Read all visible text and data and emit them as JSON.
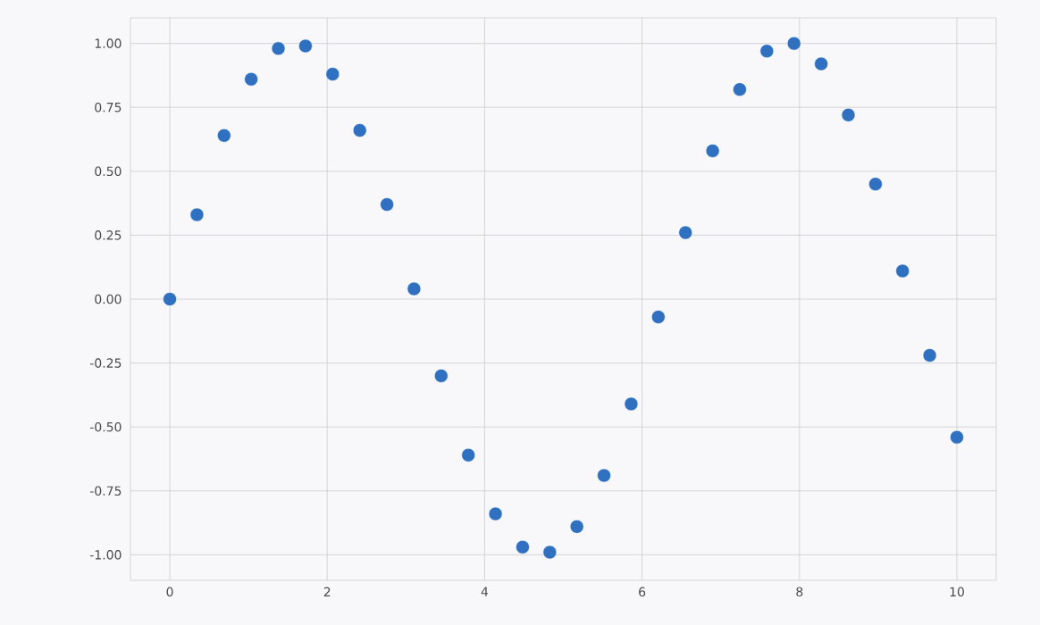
{
  "chart_data": {
    "type": "scatter",
    "x": [
      0,
      0.345,
      0.69,
      1.034,
      1.379,
      1.724,
      2.069,
      2.414,
      2.759,
      3.103,
      3.448,
      3.793,
      4.138,
      4.483,
      4.828,
      5.172,
      5.517,
      5.862,
      6.207,
      6.552,
      6.897,
      7.241,
      7.586,
      7.931,
      8.276,
      8.621,
      8.966,
      9.31,
      9.655,
      10
    ],
    "values": [
      0,
      0.33,
      0.64,
      0.86,
      0.98,
      0.99,
      0.88,
      0.66,
      0.37,
      0.04,
      -0.3,
      -0.61,
      -0.84,
      -0.97,
      -0.99,
      -0.89,
      -0.69,
      -0.41,
      -0.07,
      0.26,
      0.58,
      0.82,
      0.97,
      1.0,
      0.92,
      0.72,
      0.45,
      0.11,
      -0.22,
      -0.54
    ],
    "color": "#3070c0",
    "grid": true,
    "xlim": [
      -0.5,
      10.5
    ],
    "ylim": [
      -1.1,
      1.1
    ],
    "xticks": [
      0,
      2,
      4,
      6,
      8,
      10
    ],
    "yticks": [
      {
        "value": -1,
        "label": "-1.00"
      },
      {
        "value": -0.75,
        "label": "-0.75"
      },
      {
        "value": -0.5,
        "label": "-0.50"
      },
      {
        "value": -0.25,
        "label": "-0.25"
      },
      {
        "value": 0,
        "label": "0.00"
      },
      {
        "value": 0.25,
        "label": "0.25"
      },
      {
        "value": 0.5,
        "label": "0.50"
      },
      {
        "value": 0.75,
        "label": "0.75"
      },
      {
        "value": 1,
        "label": "1.00"
      }
    ]
  }
}
